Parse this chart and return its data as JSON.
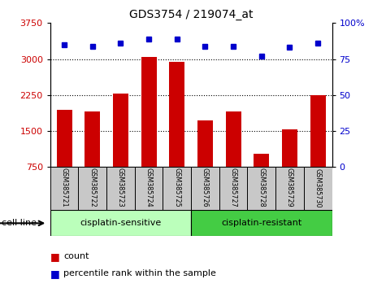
{
  "title": "GDS3754 / 219074_at",
  "samples": [
    "GSM385721",
    "GSM385722",
    "GSM385723",
    "GSM385724",
    "GSM385725",
    "GSM385726",
    "GSM385727",
    "GSM385728",
    "GSM385729",
    "GSM385730"
  ],
  "bar_values": [
    1950,
    1900,
    2280,
    3040,
    2940,
    1730,
    1900,
    1020,
    1530,
    2250
  ],
  "percentile_values": [
    85,
    84,
    86,
    89,
    89,
    84,
    84,
    77,
    83,
    86
  ],
  "bar_color": "#cc0000",
  "dot_color": "#0000cc",
  "ylim_left": [
    750,
    3750
  ],
  "ylim_right": [
    0,
    100
  ],
  "yticks_left": [
    750,
    1500,
    2250,
    3000,
    3750
  ],
  "yticks_right": [
    0,
    25,
    50,
    75,
    100
  ],
  "groups": [
    {
      "label": "cisplatin-sensitive",
      "start": 0,
      "end": 5,
      "color": "#bbffbb"
    },
    {
      "label": "cisplatin-resistant",
      "start": 5,
      "end": 10,
      "color": "#44cc44"
    }
  ],
  "group_label": "cell line",
  "legend_count": "count",
  "legend_percentile": "percentile rank within the sample",
  "background_color": "#ffffff",
  "plot_bg_color": "#ffffff",
  "tick_label_color_left": "#cc0000",
  "tick_label_color_right": "#0000cc",
  "sample_bg_color": "#c8c8c8",
  "figsize": [
    4.75,
    3.54
  ],
  "dpi": 100
}
